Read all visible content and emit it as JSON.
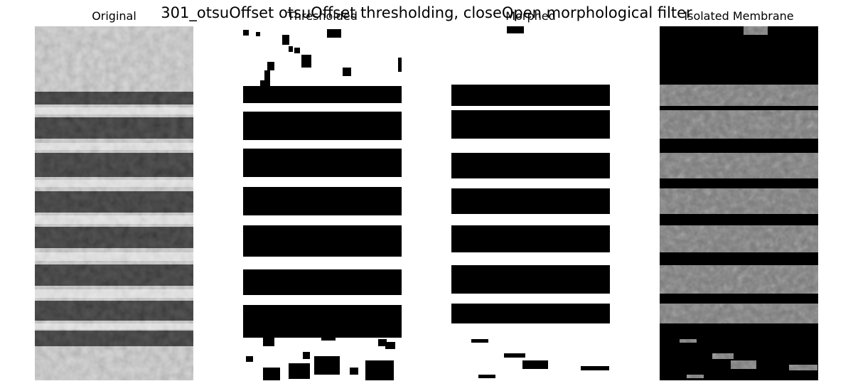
{
  "figure": {
    "title": "301_otsuOffset otsuOffset thresholding, closeOpen morphological filter"
  },
  "panels": [
    {
      "title": "Original"
    },
    {
      "title": "Thresholded"
    },
    {
      "title": "Morphed"
    },
    {
      "title": "Isolated Membrane"
    }
  ]
}
